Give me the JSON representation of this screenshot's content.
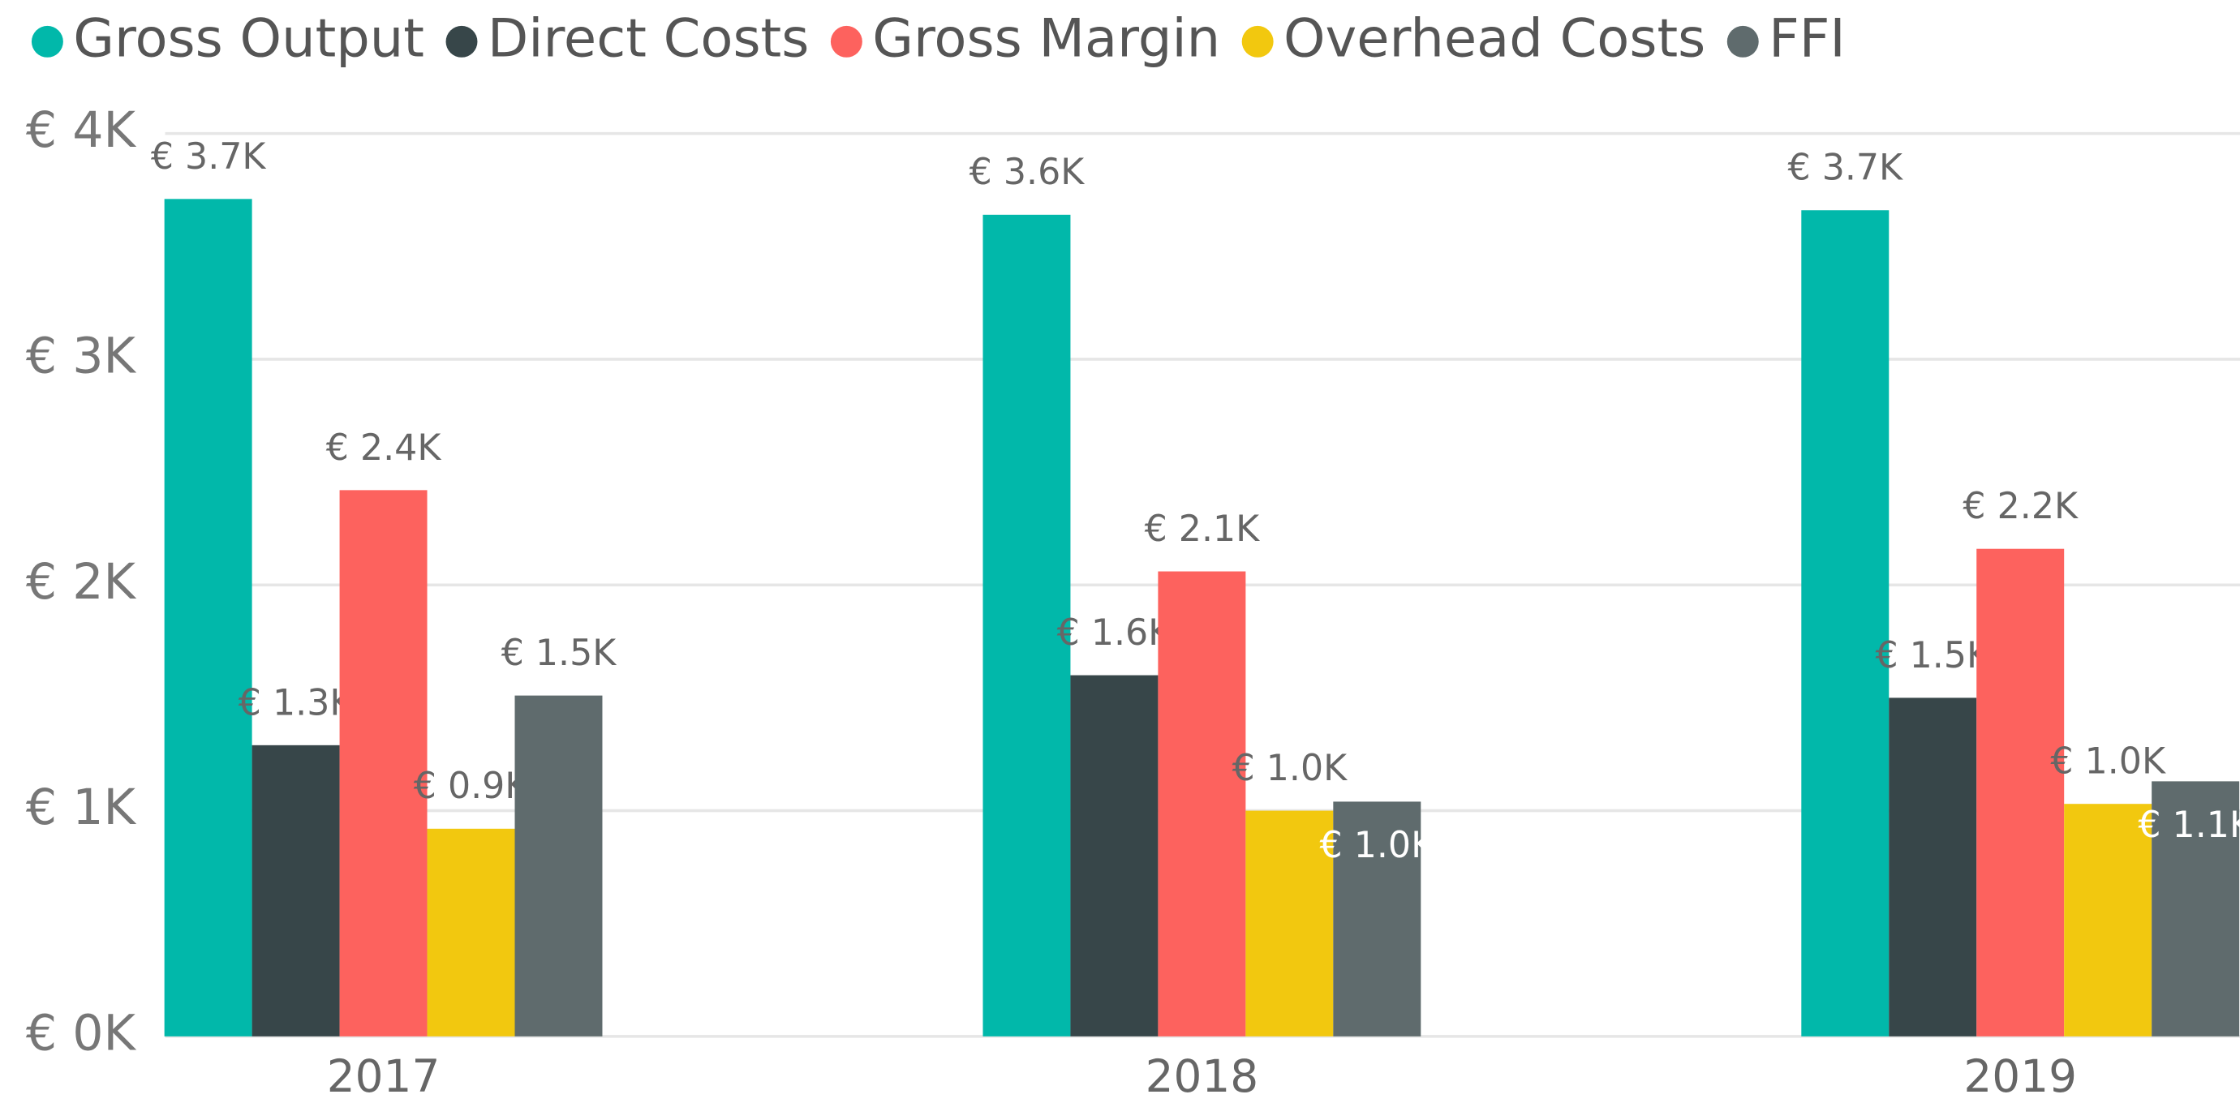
{
  "chart_data": {
    "type": "bar",
    "categories": [
      "2017",
      "2018",
      "2019"
    ],
    "series": [
      {
        "name": "Gross Output",
        "color": "#01b8aa",
        "values": [
          3710,
          3640,
          3660
        ],
        "value_labels": [
          "€ 3.7K",
          "€ 3.6K",
          "€ 3.7K"
        ]
      },
      {
        "name": "Direct Costs",
        "color": "#374649",
        "values": [
          1290,
          1600,
          1500
        ],
        "value_labels": [
          "€ 1.3K",
          "€ 1.6K",
          "€ 1.5K"
        ]
      },
      {
        "name": "Gross Margin",
        "color": "#fd625e",
        "values": [
          2420,
          2060,
          2160
        ],
        "value_labels": [
          "€ 2.4K",
          "€ 2.1K",
          "€ 2.2K"
        ]
      },
      {
        "name": "Overhead Costs",
        "color": "#f2c80f",
        "values": [
          920,
          1000,
          1030
        ],
        "value_labels": [
          "€ 0.9K",
          "€ 1.0K",
          "€ 1.0K"
        ]
      },
      {
        "name": "FFI",
        "color": "#5f6b6d",
        "values": [
          1510,
          1040,
          1130
        ],
        "value_labels": [
          "€ 1.5K",
          "€ 1.0K",
          "€ 1.1K"
        ]
      }
    ],
    "ylim": [
      0,
      4000
    ],
    "yticks": [
      {
        "value": 0,
        "label": "€ 0K"
      },
      {
        "value": 1000,
        "label": "€ 1K"
      },
      {
        "value": 2000,
        "label": "€ 2K"
      },
      {
        "value": 3000,
        "label": "€ 3K"
      },
      {
        "value": 4000,
        "label": "€ 4K"
      }
    ],
    "grid": true,
    "legend": "top"
  }
}
